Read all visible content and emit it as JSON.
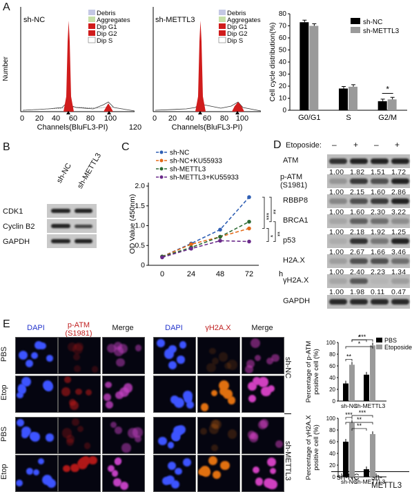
{
  "panels": {
    "A": "A",
    "B": "B",
    "C": "C",
    "D": "D",
    "E": "E"
  },
  "panelA": {
    "hist_left": {
      "sample": "sh-NC",
      "ylabel": "Number",
      "xlabel": "Channels(BluFL3-PI)",
      "xticks": [
        "0",
        "20",
        "40",
        "60",
        "80",
        "100",
        "120"
      ]
    },
    "hist_right": {
      "sample": "sh-METTL3",
      "xlabel": "Channels(BluFL3-PI)",
      "xticks": [
        "0",
        "20",
        "40",
        "60",
        "80",
        "100"
      ]
    },
    "legend": [
      "Debris",
      "Aggregates",
      "Dip G1",
      "Dip G2",
      "Dip S"
    ],
    "legend_colors": [
      "#c4c8e4",
      "#c6e0a8",
      "#d01c1c",
      "#d01c1c",
      "#ffffff"
    ],
    "bar": {
      "ylabel": "Cell cycle distribution(%)",
      "yticks": [
        "0",
        "10",
        "20",
        "30",
        "40",
        "50",
        "60",
        "70",
        "80"
      ],
      "categories": [
        "G0/G1",
        "S",
        "G2/M"
      ],
      "series_names": [
        "sh-NC",
        "sh-METTL3"
      ],
      "colors": [
        "#000000",
        "#9a9a9a"
      ],
      "sig": "*"
    }
  },
  "panelB": {
    "lanes": [
      "sh-NC",
      "sh-METTL3"
    ],
    "rows": [
      "CDK1",
      "Cyclin B2",
      "GAPDH"
    ]
  },
  "panelC": {
    "legend": [
      "sh-NC",
      "sh-NC+KU55933",
      "sh-METTL3",
      "sh-METTL3+KU55933"
    ],
    "colors": [
      "#2f5fb4",
      "#e36a1a",
      "#2b6a32",
      "#6a2a8a"
    ],
    "ylabel": "OD Value (450nm)",
    "yticks": [
      "0",
      "0.5",
      "1.0",
      "1.5",
      "2.0"
    ],
    "xticks": [
      "0",
      "24",
      "48",
      "72"
    ],
    "xunit": "h",
    "sig": [
      "***",
      "**",
      "*",
      "**"
    ]
  },
  "panelD": {
    "etoposide_label": "Etoposide:",
    "treat": [
      "–",
      "+",
      "–",
      "+"
    ],
    "rows": [
      {
        "name": "ATM",
        "q": [
          "1.00",
          "1.82",
          "1.51",
          "1.72"
        ]
      },
      {
        "name": "p-ATM\n(S1981)",
        "name1": "p-ATM",
        "name2": "(S1981)",
        "q": [
          "1.00",
          "2.15",
          "1.60",
          "2.86"
        ]
      },
      {
        "name": "RBBP8",
        "q": [
          "1.00",
          "1.60",
          "2.30",
          "3.22"
        ]
      },
      {
        "name": "BRCA1",
        "q": [
          "1.00",
          "2.18",
          "1.92",
          "1.25"
        ]
      },
      {
        "name": "p53",
        "q": [
          "1.00",
          "2.67",
          "1.66",
          "3.46"
        ]
      },
      {
        "name": "H2A.X",
        "q": [
          "1.00",
          "2.40",
          "2.23",
          "1.34"
        ]
      },
      {
        "name": "γH2A.X",
        "q": [
          "1.00",
          "1.98",
          "0.11",
          "0.47"
        ]
      },
      {
        "name": "GAPDH",
        "q": []
      }
    ],
    "groups": [
      "sh-NC",
      "sh-METTL3"
    ]
  },
  "panelE": {
    "cols_left": [
      "DAPI",
      "p-ATM\n(S1981)",
      "Merge"
    ],
    "col_patm1": "p-ATM",
    "col_patm2": "(S1981)",
    "cols_right": [
      "DAPI",
      "γH2A.X",
      "Merge"
    ],
    "rows": [
      "PBS",
      "Etop",
      "PBS",
      "Etop"
    ],
    "groups": [
      "sh-NC",
      "sh-METTL3"
    ],
    "bar1": {
      "ylabel1": "Percentage of p-ATM",
      "ylabel2": "positive cell (%)",
      "yticks": [
        "0",
        "20",
        "40",
        "60",
        "80",
        "100"
      ],
      "categories": [
        "sh-NC",
        "sh-METTL3"
      ],
      "legend": [
        "PBS",
        "Etoposide"
      ],
      "sig": [
        "**",
        "*",
        "*",
        "***"
      ]
    },
    "bar2": {
      "ylabel1": "Percentage of γH2A.X",
      "ylabel2": "positive cell (%)",
      "yticks": [
        "0",
        "20",
        "40",
        "60",
        "80",
        "100"
      ],
      "categories": [
        "sh-NC",
        "sh-METTL3"
      ],
      "sig": [
        "***",
        "**",
        "**",
        "***"
      ]
    }
  },
  "chart_data": [
    {
      "type": "bar",
      "title": "",
      "ylabel": "Cell cycle distribution(%)",
      "ylim": [
        0,
        80
      ],
      "categories": [
        "G0/G1",
        "S",
        "G2/M"
      ],
      "series": [
        {
          "name": "sh-NC",
          "values": [
            73,
            18,
            7.5
          ]
        },
        {
          "name": "sh-METTL3",
          "values": [
            70,
            19.5,
            9
          ]
        }
      ]
    },
    {
      "type": "line",
      "ylabel": "OD Value (450nm)",
      "ylim": [
        0,
        2.0
      ],
      "x": [
        0,
        24,
        48,
        72
      ],
      "xlabel": "h",
      "series": [
        {
          "name": "sh-NC",
          "values": [
            0.22,
            0.55,
            0.9,
            1.72
          ]
        },
        {
          "name": "sh-NC+KU55933",
          "values": [
            0.22,
            0.53,
            0.72,
            0.93
          ]
        },
        {
          "name": "sh-METTL3",
          "values": [
            0.22,
            0.45,
            0.72,
            1.1
          ]
        },
        {
          "name": "sh-METTL3+KU55933",
          "values": [
            0.2,
            0.42,
            0.62,
            0.6
          ]
        }
      ]
    },
    {
      "type": "bar",
      "ylabel": "Percentage of p-ATM positive cell (%)",
      "ylim": [
        0,
        100
      ],
      "categories": [
        "sh-NC",
        "sh-METTL3"
      ],
      "series": [
        {
          "name": "PBS",
          "values": [
            30,
            45
          ]
        },
        {
          "name": "Etoposide",
          "values": [
            62,
            95
          ]
        }
      ]
    },
    {
      "type": "bar",
      "ylabel": "Percentage of γH2A.X positive cell (%)",
      "ylim": [
        0,
        100
      ],
      "categories": [
        "sh-NC",
        "sh-METTL3"
      ],
      "series": [
        {
          "name": "PBS",
          "values": [
            60,
            13
          ]
        },
        {
          "name": "Etoposide",
          "values": [
            92,
            73
          ]
        }
      ]
    }
  ]
}
